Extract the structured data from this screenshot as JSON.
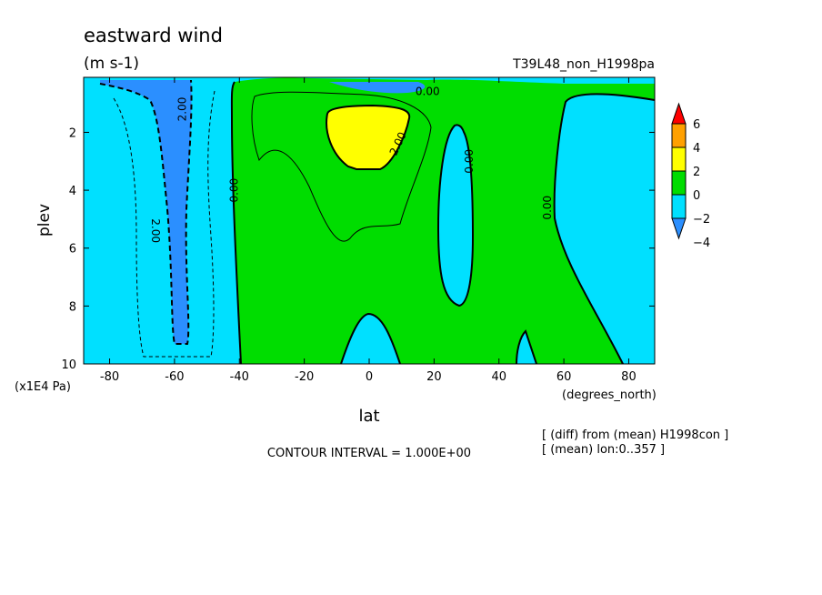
{
  "chart_data": {
    "type": "contour",
    "title": "eastward wind",
    "units": "(m s-1)",
    "run_label": "T39L48_non_H1998pa",
    "xlabel": "lat",
    "x_units": "(degrees_north)",
    "ylabel": "plev",
    "y_units": "(x1E4 Pa)",
    "xlim": [
      -88,
      88
    ],
    "ylim": [
      10,
      0.1
    ],
    "x_ticks": [
      -80,
      -60,
      -40,
      -20,
      0,
      20,
      40,
      60,
      80
    ],
    "x_tick_labels": [
      "-80",
      "-60",
      "-40",
      "-20",
      "0",
      "20",
      "40",
      "60",
      "80"
    ],
    "y_ticks": [
      2,
      4,
      6,
      8,
      10
    ],
    "y_tick_labels": [
      "2",
      "4",
      "6",
      "8",
      "10"
    ],
    "contour_interval_text": "CONTOUR INTERVAL = 1.000E+00",
    "notes": [
      "[ (diff) from (mean) H1998con ]",
      "[ (mean) lon:0..357 ]"
    ],
    "colorbar": {
      "levels": [
        -4,
        -2,
        0,
        2,
        4,
        6
      ],
      "labels": [
        "6",
        "4",
        "2",
        "0",
        "−2",
        "−4"
      ],
      "colors": [
        "#2b8fff",
        "#00e0ff",
        "#00dd00",
        "#ffff00",
        "#ffa000",
        "#ff0000"
      ]
    },
    "contour_labels": [
      {
        "text": "2.00",
        "lat": -57.5,
        "plev": 1.2,
        "rot": -90
      },
      {
        "text": "2.00",
        "lat": -66,
        "plev": 5.4,
        "rot": 90
      },
      {
        "text": "0.00",
        "lat": -41.5,
        "plev": 4.0,
        "rot": -90
      },
      {
        "text": "0.00",
        "lat": 18,
        "plev": 0.6,
        "rot": 0
      },
      {
        "text": "2.00",
        "lat": 9,
        "plev": 2.4,
        "rot": -65
      },
      {
        "text": "0.00",
        "lat": 31,
        "plev": 3.0,
        "rot": -90
      },
      {
        "text": "0.00",
        "lat": 55,
        "plev": 4.6,
        "rot": -90
      }
    ]
  }
}
